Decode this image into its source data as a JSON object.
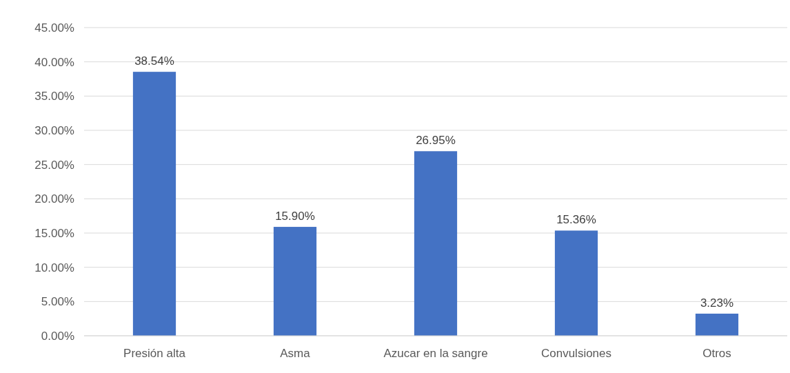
{
  "chart_data": {
    "type": "bar",
    "categories": [
      "Presión alta",
      "Asma",
      "Azucar en la sangre",
      "Convulsiones",
      "Otros"
    ],
    "values": [
      38.54,
      15.9,
      26.95,
      15.36,
      3.23
    ],
    "value_labels": [
      "38.54%",
      "15.90%",
      "26.95%",
      "15.36%",
      "3.23%"
    ],
    "color": "#4472c4",
    "ylim": [
      0,
      45
    ],
    "yticks": [
      {
        "value": 0,
        "label": "0.00%"
      },
      {
        "value": 5,
        "label": "5.00%"
      },
      {
        "value": 10,
        "label": "10.00%"
      },
      {
        "value": 15,
        "label": "15.00%"
      },
      {
        "value": 20,
        "label": "20.00%"
      },
      {
        "value": 25,
        "label": "25.00%"
      },
      {
        "value": 30,
        "label": "30.00%"
      },
      {
        "value": 35,
        "label": "35.00%"
      },
      {
        "value": 40,
        "label": "40.00%"
      },
      {
        "value": 45,
        "label": "45.00%"
      }
    ],
    "grid": "y"
  }
}
